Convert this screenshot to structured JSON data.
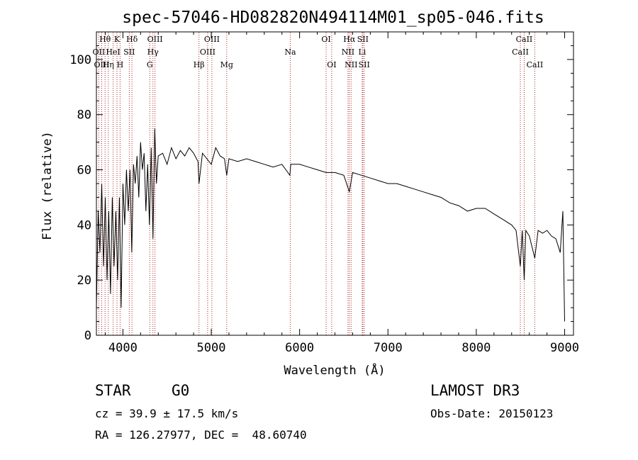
{
  "chart_data": {
    "type": "line",
    "title": "spec-57046-HD082820N494114M01_sp05-046.fits",
    "xlabel": "Wavelength (Å)",
    "ylabel": "Flux (relative)",
    "xlim": [
      3700,
      9100
    ],
    "ylim": [
      0,
      110
    ],
    "x_ticks": [
      4000,
      5000,
      6000,
      7000,
      8000,
      9000
    ],
    "y_ticks": [
      0,
      20,
      40,
      60,
      80,
      100
    ],
    "grid": false,
    "line_color": "#000000",
    "marker_color": "#b22222",
    "spectrum": {
      "x": [
        3700,
        3720,
        3740,
        3760,
        3780,
        3800,
        3820,
        3840,
        3860,
        3880,
        3900,
        3920,
        3940,
        3960,
        3980,
        4000,
        4020,
        4040,
        4060,
        4080,
        4100,
        4120,
        4140,
        4160,
        4180,
        4200,
        4220,
        4240,
        4260,
        4280,
        4300,
        4320,
        4340,
        4360,
        4380,
        4400,
        4450,
        4500,
        4550,
        4600,
        4650,
        4700,
        4750,
        4800,
        4850,
        4861,
        4900,
        4950,
        5000,
        5050,
        5100,
        5150,
        5175,
        5200,
        5300,
        5400,
        5500,
        5600,
        5700,
        5800,
        5890,
        5900,
        6000,
        6100,
        6200,
        6300,
        6400,
        6500,
        6563,
        6600,
        6700,
        6800,
        6900,
        7000,
        7100,
        7200,
        7300,
        7400,
        7500,
        7600,
        7700,
        7800,
        7900,
        8000,
        8100,
        8200,
        8300,
        8400,
        8450,
        8498,
        8520,
        8542,
        8560,
        8600,
        8662,
        8700,
        8750,
        8800,
        8850,
        8900,
        8950,
        8980,
        9000
      ],
      "y": [
        10,
        45,
        30,
        55,
        25,
        50,
        20,
        45,
        15,
        50,
        25,
        45,
        20,
        50,
        10,
        55,
        40,
        60,
        45,
        60,
        30,
        62,
        55,
        65,
        50,
        70,
        60,
        66,
        45,
        62,
        40,
        68,
        35,
        75,
        55,
        65,
        66,
        62,
        68,
        64,
        67,
        65,
        68,
        66,
        63,
        55,
        66,
        64,
        62,
        68,
        65,
        64,
        58,
        64,
        63,
        64,
        63,
        62,
        61,
        62,
        58,
        62,
        62,
        61,
        60,
        59,
        59,
        58,
        52,
        59,
        58,
        57,
        56,
        55,
        55,
        54,
        53,
        52,
        51,
        50,
        48,
        47,
        45,
        46,
        46,
        44,
        42,
        40,
        38,
        25,
        38,
        20,
        38,
        36,
        28,
        38,
        37,
        38,
        36,
        35,
        30,
        45,
        5
      ]
    },
    "lines": [
      {
        "label": "Hθ",
        "wavelength": 3798,
        "row": 0
      },
      {
        "label": "OII",
        "wavelength": 3727,
        "row": 1
      },
      {
        "label": "OIII",
        "wavelength": 3760,
        "row": 2
      },
      {
        "label": "Hη",
        "wavelength": 3835,
        "row": 2
      },
      {
        "label": "HeI",
        "wavelength": 3889,
        "row": 1
      },
      {
        "label": "K",
        "wavelength": 3933,
        "row": 0
      },
      {
        "label": "H",
        "wavelength": 3968,
        "row": 2
      },
      {
        "label": "SII",
        "wavelength": 4072,
        "row": 1
      },
      {
        "label": "Hδ",
        "wavelength": 4102,
        "row": 0
      },
      {
        "label": "OIII",
        "wavelength": 4363,
        "row": 0
      },
      {
        "label": "Hγ",
        "wavelength": 4340,
        "row": 1
      },
      {
        "label": "G",
        "wavelength": 4304,
        "row": 2
      },
      {
        "label": "Hβ",
        "wavelength": 4861,
        "row": 2
      },
      {
        "label": "OIII",
        "wavelength": 5007,
        "row": 0
      },
      {
        "label": "OIII",
        "wavelength": 4959,
        "row": 1
      },
      {
        "label": "Mg",
        "wavelength": 5175,
        "row": 2
      },
      {
        "label": "Na",
        "wavelength": 5894,
        "row": 1
      },
      {
        "label": "OI",
        "wavelength": 6300,
        "row": 0
      },
      {
        "label": "OI",
        "wavelength": 6363,
        "row": 2
      },
      {
        "label": "Hα",
        "wavelength": 6563,
        "row": 0
      },
      {
        "label": "NII",
        "wavelength": 6548,
        "row": 1
      },
      {
        "label": "NII",
        "wavelength": 6583,
        "row": 2
      },
      {
        "label": "SII",
        "wavelength": 6716,
        "row": 0
      },
      {
        "label": "Li",
        "wavelength": 6708,
        "row": 1
      },
      {
        "label": "SII",
        "wavelength": 6731,
        "row": 2
      },
      {
        "label": "CaII",
        "wavelength": 8542,
        "row": 0
      },
      {
        "label": "CaII",
        "wavelength": 8498,
        "row": 1
      },
      {
        "label": "CaII",
        "wavelength": 8662,
        "row": 2
      }
    ]
  },
  "info": {
    "object_type": "STAR",
    "subclass": "G0",
    "survey": "LAMOST DR3",
    "redshift_text": "cz = 39.9 ± 17.5 km/s",
    "obs_date_text": "Obs-Date: 20150123",
    "coords_text": "RA = 126.27977, DEC =  48.60740"
  }
}
